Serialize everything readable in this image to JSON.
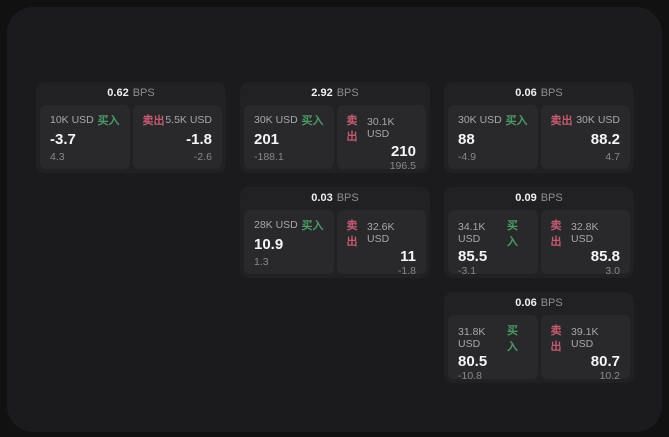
{
  "labels": {
    "bps_unit": "BPS",
    "buy": "买入",
    "sell": "卖出"
  },
  "colors": {
    "buy_green": "#4c9a66",
    "sell_red": "#c35b70",
    "page_bg": "#111112",
    "surface_bg": "#1b1b1d",
    "card_bg": "#212124",
    "panel_bg": "#29292c"
  },
  "cards": [
    {
      "bps": "0.62",
      "buy": {
        "amount": "10K USD",
        "value": "-3.7",
        "sub": "4.3"
      },
      "sell": {
        "amount": "5.5K USD",
        "value": "-1.8",
        "sub": "-2.6"
      }
    },
    {
      "bps": "2.92",
      "buy": {
        "amount": "30K USD",
        "value": "201",
        "sub": "-188.1"
      },
      "sell": {
        "amount": "30.1K USD",
        "value": "210",
        "sub": "196.5"
      }
    },
    {
      "bps": "0.06",
      "buy": {
        "amount": "30K USD",
        "value": "88",
        "sub": "-4.9"
      },
      "sell": {
        "amount": "30K USD",
        "value": "88.2",
        "sub": "4.7"
      }
    },
    {
      "bps": "0.03",
      "buy": {
        "amount": "28K USD",
        "value": "10.9",
        "sub": "1.3"
      },
      "sell": {
        "amount": "32.6K USD",
        "value": "11",
        "sub": "-1.8"
      }
    },
    {
      "bps": "0.09",
      "buy": {
        "amount": "34.1K USD",
        "value": "85.5",
        "sub": "-3.1"
      },
      "sell": {
        "amount": "32.8K USD",
        "value": "85.8",
        "sub": "3.0"
      }
    },
    {
      "bps": "0.06",
      "buy": {
        "amount": "31.8K USD",
        "value": "80.5",
        "sub": "-10.8"
      },
      "sell": {
        "amount": "39.1K USD",
        "value": "80.7",
        "sub": "10.2"
      }
    }
  ]
}
